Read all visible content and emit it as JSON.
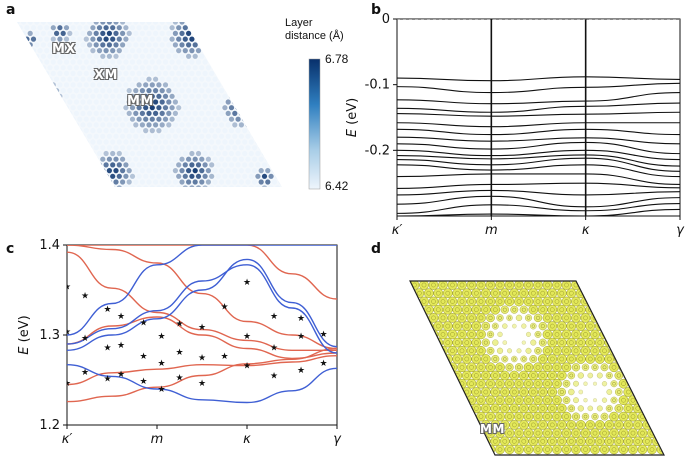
{
  "panels": {
    "a": "a",
    "b": "b",
    "c": "c",
    "d": "d"
  },
  "panel_a": {
    "labels": {
      "mx": "MX",
      "xm": "XM",
      "mm": "MM"
    },
    "colorbar": {
      "title_line1": "Layer",
      "title_line2": "distance (Å)",
      "max_label": "6.78",
      "min_label": "6.42",
      "color_high": "#08306b",
      "color_low": "#eef5fc"
    }
  },
  "panel_d": {
    "label_mm": "MM",
    "dot_color": "#e3e85a",
    "ring_color": "#9a9a2a"
  },
  "chart_data": [
    {
      "id": "b",
      "type": "line",
      "title": "",
      "xlabel": "",
      "ylabel_main": "E",
      "ylabel_unit": " (eV)",
      "ylim": [
        -0.3,
        0
      ],
      "yticks": [
        0,
        -0.1,
        -0.2
      ],
      "ytick_labels": [
        "0",
        "-0.1",
        "-0.2"
      ],
      "xtick_labels": [
        "κ′",
        "m",
        "κ",
        "γ"
      ],
      "xtick_pos": [
        0,
        1,
        2,
        3
      ],
      "dashed_ref_y": 0,
      "series": [
        {
          "name": "band1",
          "x": [
            0,
            1,
            2,
            3
          ],
          "y": [
            -0.3,
            -0.297,
            -0.3,
            -0.29
          ]
        },
        {
          "name": "band2",
          "x": [
            0,
            1,
            2,
            3
          ],
          "y": [
            -0.296,
            -0.283,
            -0.292,
            -0.281
          ]
        },
        {
          "name": "band3",
          "x": [
            0,
            1,
            2,
            3
          ],
          "y": [
            -0.282,
            -0.27,
            -0.286,
            -0.272
          ]
        },
        {
          "name": "band4",
          "x": [
            0,
            1,
            2,
            3
          ],
          "y": [
            -0.268,
            -0.261,
            -0.268,
            -0.263
          ]
        },
        {
          "name": "band5",
          "x": [
            0,
            1,
            2,
            3
          ],
          "y": [
            -0.258,
            -0.252,
            -0.25,
            -0.257
          ]
        },
        {
          "name": "band6",
          "x": [
            0,
            1,
            2,
            3
          ],
          "y": [
            -0.24,
            -0.236,
            -0.236,
            -0.252
          ]
        },
        {
          "name": "band7",
          "x": [
            0,
            1,
            2,
            3
          ],
          "y": [
            -0.222,
            -0.23,
            -0.222,
            -0.24
          ]
        },
        {
          "name": "band8",
          "x": [
            0,
            1,
            2,
            3
          ],
          "y": [
            -0.214,
            -0.222,
            -0.212,
            -0.232
          ]
        },
        {
          "name": "band9",
          "x": [
            0,
            1,
            2,
            3
          ],
          "y": [
            -0.208,
            -0.213,
            -0.207,
            -0.224
          ]
        },
        {
          "name": "band10",
          "x": [
            0,
            1,
            2,
            3
          ],
          "y": [
            -0.2,
            -0.208,
            -0.2,
            -0.214
          ]
        },
        {
          "name": "band11",
          "x": [
            0,
            1,
            2,
            3
          ],
          "y": [
            -0.19,
            -0.198,
            -0.188,
            -0.205
          ]
        },
        {
          "name": "band12",
          "x": [
            0,
            1,
            2,
            3
          ],
          "y": [
            -0.18,
            -0.186,
            -0.181,
            -0.19
          ]
        },
        {
          "name": "band13",
          "x": [
            0,
            1,
            2,
            3
          ],
          "y": [
            -0.168,
            -0.176,
            -0.168,
            -0.176
          ]
        },
        {
          "name": "band14",
          "x": [
            0,
            1,
            2,
            3
          ],
          "y": [
            -0.158,
            -0.164,
            -0.158,
            -0.158
          ]
        },
        {
          "name": "band15",
          "x": [
            0,
            1,
            2,
            3
          ],
          "y": [
            -0.144,
            -0.148,
            -0.145,
            -0.142
          ]
        },
        {
          "name": "band16",
          "x": [
            0,
            1,
            2,
            3
          ],
          "y": [
            -0.136,
            -0.142,
            -0.133,
            -0.128
          ]
        },
        {
          "name": "band17",
          "x": [
            0,
            1,
            2,
            3
          ],
          "y": [
            -0.123,
            -0.129,
            -0.125,
            -0.112
          ]
        },
        {
          "name": "band18",
          "x": [
            0,
            1,
            2,
            3
          ],
          "y": [
            -0.103,
            -0.112,
            -0.104,
            -0.098
          ]
        },
        {
          "name": "band19",
          "x": [
            0,
            1,
            2,
            3
          ],
          "y": [
            -0.09,
            -0.094,
            -0.088,
            -0.092
          ]
        }
      ]
    },
    {
      "id": "c",
      "type": "line",
      "title": "",
      "xlabel": "",
      "ylabel_main": "E",
      "ylabel_unit": " (eV)",
      "ylim": [
        1.2,
        1.4
      ],
      "yticks": [
        1.2,
        1.3,
        1.4
      ],
      "ytick_labels": [
        "1.2",
        "1.3",
        "1.4"
      ],
      "xtick_labels": [
        "κ′",
        "m",
        "κ",
        "γ"
      ],
      "xtick_pos": [
        0,
        1,
        2,
        3
      ],
      "series": [
        {
          "name": "red-1",
          "color": "#e06650",
          "x": [
            0,
            0.5,
            1,
            1.5,
            2,
            2.5,
            3
          ],
          "y": [
            1.226,
            1.232,
            1.242,
            1.255,
            1.268,
            1.273,
            1.285
          ]
        },
        {
          "name": "red-2",
          "color": "#e06650",
          "x": [
            0,
            0.5,
            1,
            1.5,
            2,
            2.5,
            3
          ],
          "y": [
            1.245,
            1.258,
            1.262,
            1.267,
            1.266,
            1.27,
            1.277
          ]
        },
        {
          "name": "red-3",
          "color": "#e06650",
          "x": [
            0,
            0.5,
            1,
            1.5,
            2,
            2.5,
            3
          ],
          "y": [
            1.29,
            1.31,
            1.32,
            1.3,
            1.285,
            1.274,
            1.28
          ]
        },
        {
          "name": "red-4",
          "color": "#e06650",
          "x": [
            0,
            0.5,
            1,
            1.5,
            2,
            2.5,
            3
          ],
          "y": [
            1.392,
            1.352,
            1.325,
            1.306,
            1.294,
            1.283,
            1.283
          ]
        },
        {
          "name": "red-5",
          "color": "#e06650",
          "x": [
            0,
            0.5,
            1,
            1.5,
            2,
            2.5,
            3
          ],
          "y": [
            1.4,
            1.395,
            1.38,
            1.346,
            1.315,
            1.3,
            1.285
          ]
        },
        {
          "name": "red-6",
          "color": "#e06650",
          "x": [
            0,
            0.5,
            1,
            1.5,
            2,
            2.5,
            3
          ],
          "y": [
            1.4,
            1.4,
            1.4,
            1.4,
            1.4,
            1.368,
            1.34
          ]
        },
        {
          "name": "blue-1",
          "color": "#3f5fd4",
          "x": [
            0,
            0.5,
            1,
            1.5,
            2,
            2.5,
            3
          ],
          "y": [
            1.267,
            1.254,
            1.24,
            1.228,
            1.225,
            1.238,
            1.263
          ]
        },
        {
          "name": "blue-2",
          "color": "#3f5fd4",
          "x": [
            0,
            0.5,
            1,
            1.5,
            2,
            2.5,
            3
          ],
          "y": [
            1.283,
            1.3,
            1.318,
            1.35,
            1.384,
            1.336,
            1.287
          ]
        },
        {
          "name": "blue-3",
          "color": "#3f5fd4",
          "x": [
            0,
            0.5,
            1,
            1.5,
            2,
            2.5,
            3
          ],
          "y": [
            1.29,
            1.307,
            1.327,
            1.36,
            1.378,
            1.33,
            1.28
          ]
        },
        {
          "name": "blue-4",
          "color": "#3f5fd4",
          "x": [
            0,
            0.5,
            1,
            1.5,
            2,
            2.5,
            3
          ],
          "y": [
            1.3,
            1.335,
            1.378,
            1.4,
            1.4,
            1.4,
            1.4
          ]
        }
      ],
      "scatter": {
        "name": "stars",
        "marker": "★",
        "x": [
          0,
          0,
          0,
          0.2,
          0.2,
          0.2,
          0.45,
          0.45,
          0.45,
          0.6,
          0.6,
          0.6,
          0.85,
          0.85,
          0.85,
          1.05,
          1.05,
          1.05,
          1.25,
          1.25,
          1.25,
          1.5,
          1.5,
          1.5,
          1.75,
          1.75,
          2.0,
          2.0,
          2.0,
          2.3,
          2.3,
          2.3,
          2.6,
          2.6,
          2.6,
          2.85,
          2.85
        ],
        "y": [
          1.355,
          1.305,
          1.248,
          1.345,
          1.298,
          1.26,
          1.33,
          1.287,
          1.253,
          1.322,
          1.29,
          1.258,
          1.315,
          1.278,
          1.25,
          1.3,
          1.27,
          1.241,
          1.314,
          1.282,
          1.254,
          1.31,
          1.276,
          1.248,
          1.333,
          1.278,
          1.36,
          1.3,
          1.267,
          1.322,
          1.287,
          1.256,
          1.32,
          1.3,
          1.262,
          1.302,
          1.27
        ]
      }
    }
  ]
}
